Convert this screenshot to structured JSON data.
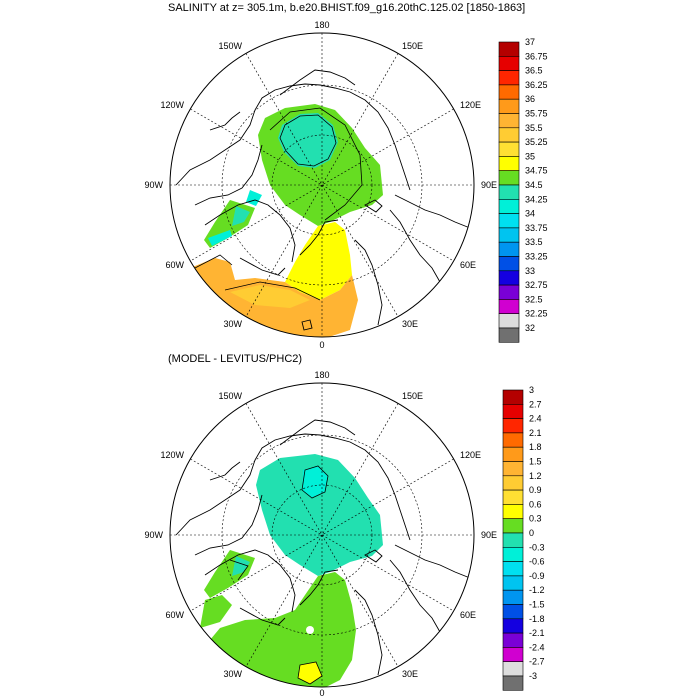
{
  "top_panel": {
    "title": "SALINITY at z= 305.1m, b.e20.BHIST.f09_g16.20thC.125.02 [1850-1863]",
    "longitude_labels": [
      "180",
      "150E",
      "120E",
      "90E",
      "60E",
      "30E",
      "0",
      "30W",
      "60W",
      "90W",
      "120W",
      "150W"
    ],
    "colorbar": {
      "labels": [
        "37",
        "36.75",
        "36.5",
        "36.25",
        "36",
        "35.75",
        "35.5",
        "35.25",
        "35",
        "34.75",
        "34.5",
        "34.25",
        "34",
        "33.75",
        "33.5",
        "33.25",
        "33",
        "32.75",
        "32.5",
        "32.25",
        "32"
      ],
      "colors": [
        "#b40000",
        "#e60000",
        "#ff2600",
        "#ff6a00",
        "#ff9a1a",
        "#ffb433",
        "#ffcc33",
        "#ffe033",
        "#ffff00",
        "#66dd22",
        "#22e0b0",
        "#00f0d8",
        "#00e0f0",
        "#00c4f0",
        "#0095f0",
        "#0050e6",
        "#1400e0",
        "#7a00d6",
        "#d000d0",
        "#dddddd",
        "#707070"
      ]
    }
  },
  "bottom_panel": {
    "title": "(MODEL - LEVITUS/PHC2)",
    "longitude_labels": [
      "180",
      "150E",
      "120E",
      "90E",
      "60E",
      "30E",
      "0",
      "30W",
      "60W",
      "90W",
      "120W",
      "150W"
    ],
    "colorbar": {
      "labels": [
        "3",
        "2.7",
        "2.4",
        "2.1",
        "1.8",
        "1.5",
        "1.2",
        "0.9",
        "0.6",
        "0.3",
        "0",
        "-0.3",
        "-0.6",
        "-0.9",
        "-1.2",
        "-1.5",
        "-1.8",
        "-2.1",
        "-2.4",
        "-2.7",
        "-3"
      ],
      "colors": [
        "#b40000",
        "#e60000",
        "#ff2600",
        "#ff6a00",
        "#ff9a1a",
        "#ffb433",
        "#ffcc33",
        "#ffe033",
        "#ffff00",
        "#66dd22",
        "#22e0b0",
        "#00f0d8",
        "#00e0f0",
        "#00c4f0",
        "#0095f0",
        "#0050e6",
        "#1400e0",
        "#7a00d6",
        "#d000d0",
        "#dddddd",
        "#707070"
      ]
    }
  }
}
